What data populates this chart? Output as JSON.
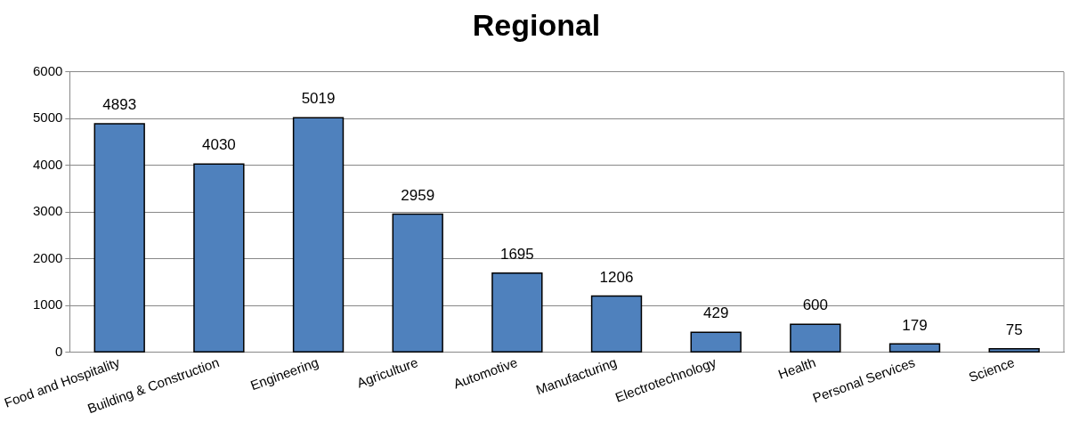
{
  "chart_data": {
    "type": "bar",
    "title": "Regional",
    "categories": [
      "Food and Hospitality",
      "Building & Construction",
      "Engineering",
      "Agriculture",
      "Automotive",
      "Manufacturing",
      "Electrotechnology",
      "Health",
      "Personal Services",
      "Science"
    ],
    "values": [
      4893,
      4030,
      5019,
      2959,
      1695,
      1206,
      429,
      600,
      179,
      75
    ],
    "color": "#4f81bd",
    "ylim": [
      0,
      6000
    ],
    "yticks": [
      0,
      1000,
      2000,
      3000,
      4000,
      5000,
      6000
    ],
    "grid": "y",
    "data_labels": true,
    "legend": false
  }
}
